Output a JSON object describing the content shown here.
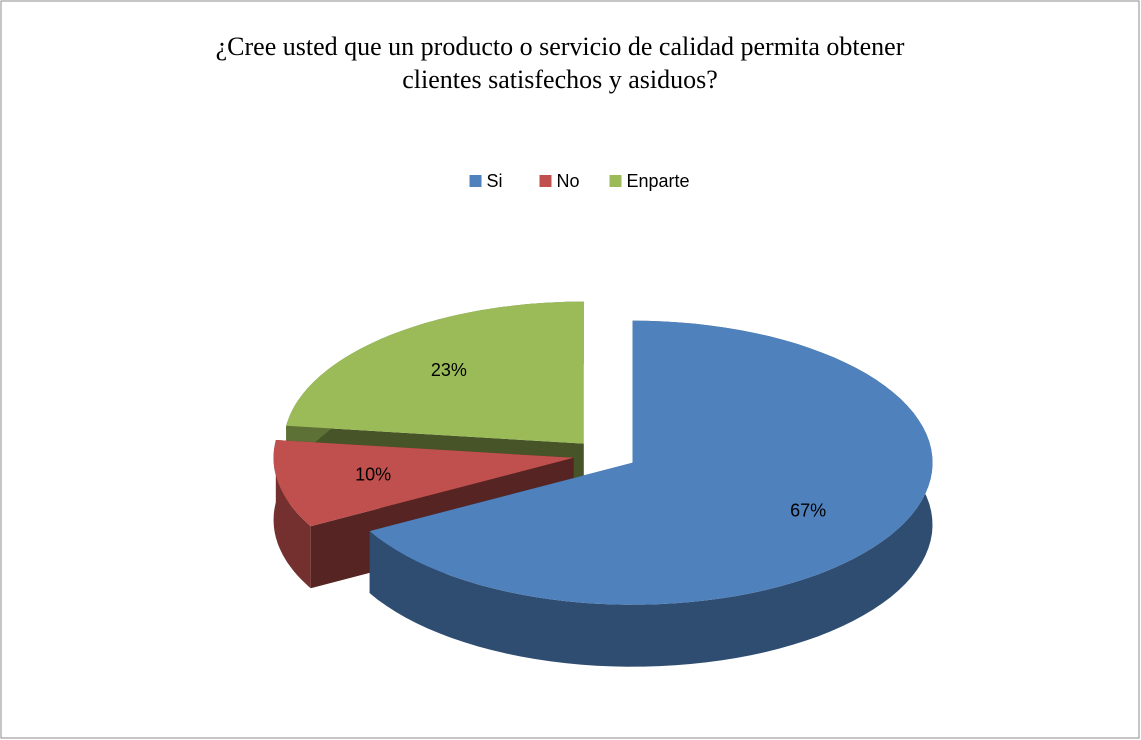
{
  "chart_data": {
    "type": "pie3d",
    "title": "¿Cree usted que un producto o servicio de calidad permita obtener clientes satisfechos y asiduos?",
    "categories": [
      "Si",
      "No",
      "Enparte"
    ],
    "values": [
      67,
      10,
      23
    ],
    "value_labels": [
      "67%",
      "10%",
      "23%"
    ],
    "colors": [
      "#4f81bd",
      "#c0504d",
      "#9bbb59"
    ],
    "legend": "top"
  }
}
